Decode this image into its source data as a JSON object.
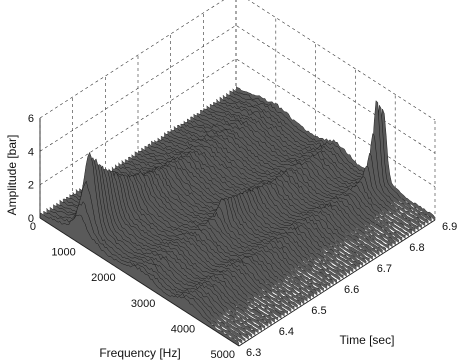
{
  "chart_data": {
    "type": "waterfall-3d",
    "xlabel": "Frequency [Hz]",
    "ylabel": "Time [sec]",
    "zlabel": "Amplitude [bar]",
    "x_ticks": [
      "0",
      "1000",
      "2000",
      "3000",
      "4000",
      "5000"
    ],
    "y_ticks": [
      "6.3",
      "6.4",
      "6.5",
      "6.6",
      "6.7",
      "6.8",
      "6.9"
    ],
    "z_ticks": [
      "0",
      "2",
      "4",
      "6"
    ],
    "xlim": [
      0,
      5000
    ],
    "ylim": [
      6.3,
      6.9
    ],
    "zlim": [
      0,
      6
    ],
    "grid": true,
    "series": [
      {
        "peak_frequency_hz": 1000,
        "description_points": {
          "freq": [
            800,
            950,
            1000,
            1050,
            1200,
            1600
          ],
          "time_of_max": 6.33,
          "max_amplitude": 4.3
        }
      },
      {
        "peak_frequency_hz": 2550,
        "description_points": {
          "freq": [
            2300,
            2500,
            2550,
            2600,
            2800
          ],
          "time_of_max": 6.55,
          "max_amplitude": 1.2
        }
      },
      {
        "peak_frequency_hz": 3700,
        "description_points": {
          "freq": [
            3500,
            3650,
            3700,
            3750,
            3900
          ],
          "time_of_max": 6.88,
          "max_amplitude": 4.9
        }
      }
    ]
  }
}
